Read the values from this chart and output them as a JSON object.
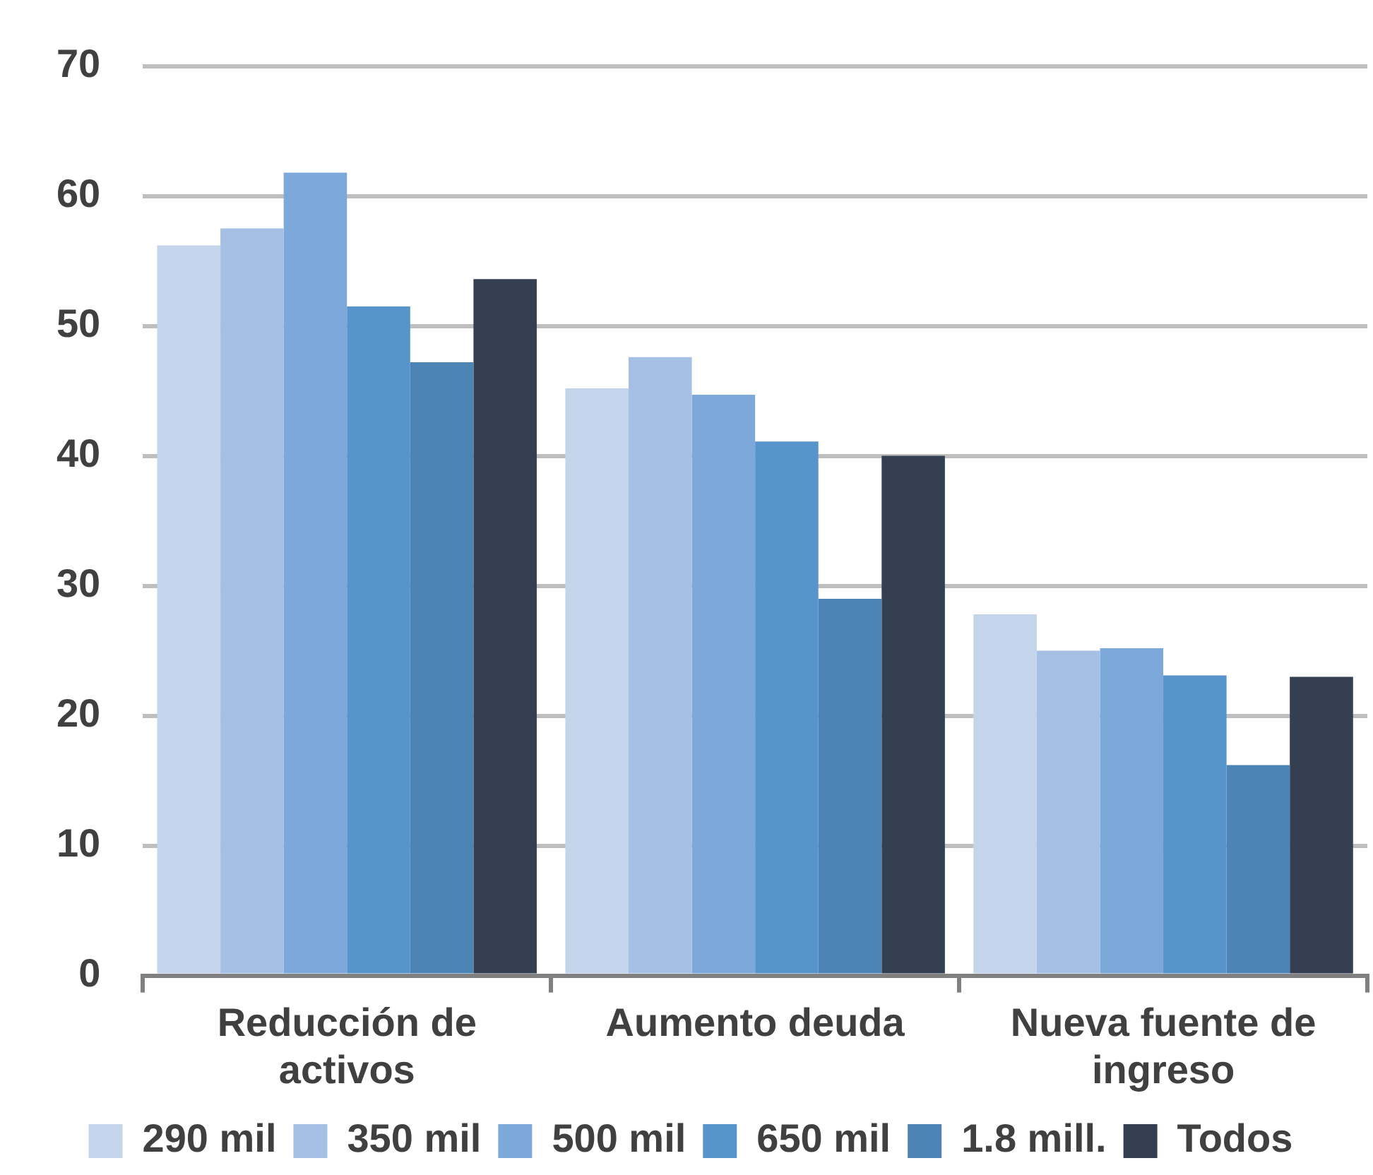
{
  "chart_data": {
    "type": "bar",
    "categories": [
      "Reducción de activos",
      "Aumento deuda",
      "Nueva fuente de ingreso"
    ],
    "series": [
      {
        "name": "290 mil",
        "color": "#c4d4ea",
        "values": [
          56.2,
          45.2,
          27.8
        ]
      },
      {
        "name": "350 mil",
        "color": "#a5c0e4",
        "values": [
          57.5,
          47.6,
          25
        ]
      },
      {
        "name": "500 mil",
        "color": "#7ca9da",
        "values": [
          61.8,
          44.7,
          25.2
        ]
      },
      {
        "name": "650 mil",
        "color": "#5694cb",
        "values": [
          51.5,
          41.1,
          23.1
        ]
      },
      {
        "name": "1.8 mill.",
        "color": "#4d84b6",
        "values": [
          47.2,
          29,
          16.2
        ]
      },
      {
        "name": "Todos",
        "color": "#343f52",
        "values": [
          53.6,
          40,
          23
        ]
      }
    ],
    "ylim": [
      0,
      70
    ],
    "yticks": [
      0,
      10,
      20,
      30,
      40,
      50,
      60,
      70
    ],
    "grid": "y",
    "legend": "bottom"
  }
}
